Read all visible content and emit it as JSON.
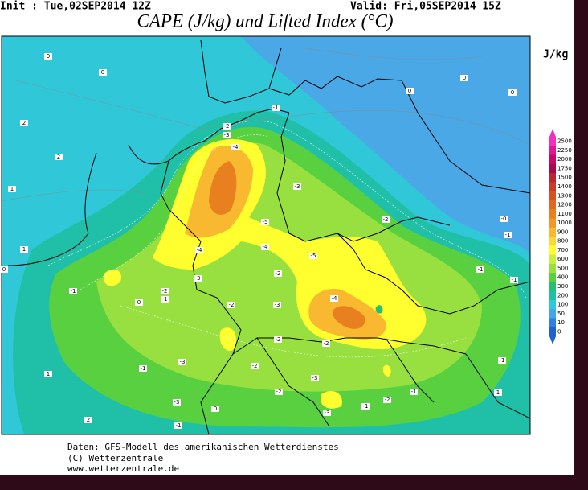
{
  "header": {
    "init": "Init : Tue,02SEP2014  12Z",
    "valid": "Valid: Fri,05SEP2014  15Z",
    "title": "CAPE (J/kg) und Lifted Index (°C)"
  },
  "legend": {
    "unit": "J/kg",
    "levels": [
      {
        "label": "2500",
        "color": "#f030c0"
      },
      {
        "label": "2250",
        "color": "#e01890"
      },
      {
        "label": "2000",
        "color": "#c80868"
      },
      {
        "label": "1750",
        "color": "#a80848"
      },
      {
        "label": "1500",
        "color": "#b82830"
      },
      {
        "label": "1400",
        "color": "#c83c28"
      },
      {
        "label": "1300",
        "color": "#d85020"
      },
      {
        "label": "1200",
        "color": "#e06820"
      },
      {
        "label": "1100",
        "color": "#e88020"
      },
      {
        "label": "1000",
        "color": "#f09828"
      },
      {
        "label": "900",
        "color": "#f8b830"
      },
      {
        "label": "800",
        "color": "#ffd838"
      },
      {
        "label": "700",
        "color": "#ffff30"
      },
      {
        "label": "600",
        "color": "#c8f040"
      },
      {
        "label": "500",
        "color": "#98e040"
      },
      {
        "label": "400",
        "color": "#58d040"
      },
      {
        "label": "300",
        "color": "#28c070"
      },
      {
        "label": "200",
        "color": "#20c0a8"
      },
      {
        "label": "100",
        "color": "#30c8d8"
      },
      {
        "label": "50",
        "color": "#40a8e8"
      },
      {
        "label": "10",
        "color": "#3080e0"
      },
      {
        "label": "0",
        "color": "#2060d0"
      }
    ]
  },
  "map": {
    "contour_labels": [
      "-4",
      "-2",
      "-3",
      "-1",
      "-3",
      "-5",
      "-4",
      "-4",
      "-2",
      "-3",
      "-2",
      "-1",
      "0",
      "-1",
      "-2",
      "-3",
      "-4",
      "-5",
      "-2",
      "-0",
      "-1",
      "-1",
      "-1",
      "-2",
      "-2",
      "-3",
      "-2",
      "-1",
      "-3",
      "-2",
      "-3",
      "-1",
      "-2",
      "-1",
      "-1",
      "0",
      "-3",
      "0",
      "0",
      "2",
      "2",
      "1",
      "0",
      "1",
      "0",
      "0",
      "0",
      "-1",
      "1",
      "2",
      "1"
    ]
  },
  "footer": {
    "lines": [
      "Daten: GFS-Modell des amerikanischen Wetterdienstes",
      "(C) Wetterzentrale",
      "www.wetterzentrale.de"
    ]
  }
}
